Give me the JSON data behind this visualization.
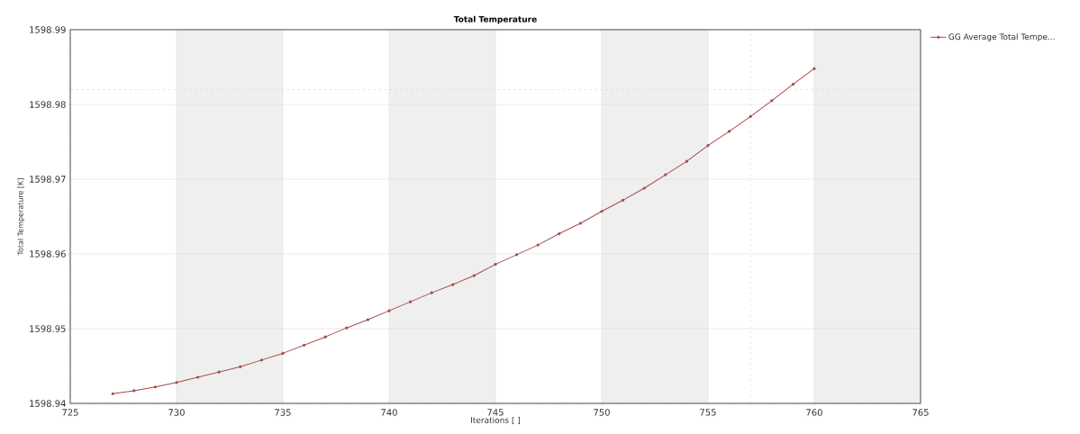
{
  "chart_data": {
    "type": "line",
    "title": "Total Temperature",
    "xlabel": "Iterations [ ]",
    "ylabel": "Total Temperature [K]",
    "x": [
      727,
      728,
      729,
      730,
      731,
      732,
      733,
      734,
      735,
      736,
      737,
      738,
      739,
      740,
      741,
      742,
      743,
      744,
      745,
      746,
      747,
      748,
      749,
      750,
      751,
      752,
      753,
      754,
      755,
      756,
      757,
      758,
      759,
      760
    ],
    "series": [
      {
        "name": "GG Average Total Tempe...",
        "color": "#a84a4a",
        "values": [
          1598.9413,
          1598.9417,
          1598.9422,
          1598.9428,
          1598.9435,
          1598.9442,
          1598.9449,
          1598.9458,
          1598.9467,
          1598.9478,
          1598.9489,
          1598.9501,
          1598.9512,
          1598.9524,
          1598.9536,
          1598.9548,
          1598.9559,
          1598.9571,
          1598.9586,
          1598.9599,
          1598.9612,
          1598.9627,
          1598.9641,
          1598.9657,
          1598.9672,
          1598.9688,
          1598.9706,
          1598.9724,
          1598.9745,
          1598.9764,
          1598.9784,
          1598.9805,
          1598.9827,
          1598.9848
        ]
      }
    ],
    "xlim": [
      725,
      765
    ],
    "ylim": [
      1598.94,
      1598.99
    ],
    "xticks": [
      725,
      730,
      735,
      740,
      745,
      750,
      755,
      760,
      765
    ],
    "yticks": [
      1598.94,
      1598.95,
      1598.96,
      1598.97,
      1598.98,
      1598.99
    ],
    "grid": true,
    "legend": "top right",
    "marker": "circle",
    "line_style": "solid",
    "bands": [
      {
        "axis": "x",
        "from": 730,
        "to": 735,
        "color": "#efefef"
      },
      {
        "axis": "x",
        "from": 740,
        "to": 745,
        "color": "#efefef"
      },
      {
        "axis": "x",
        "from": 750,
        "to": 755,
        "color": "#efefef"
      },
      {
        "axis": "x",
        "from": 760,
        "to": 765,
        "color": "#efefef"
      }
    ],
    "ref_lines": [
      {
        "axis": "x",
        "value": 757,
        "color": "#d8d8d8",
        "line_style": "dashed"
      },
      {
        "axis": "y",
        "value": 1598.982,
        "color": "#d8d8d8",
        "line_style": "dashed"
      }
    ]
  }
}
